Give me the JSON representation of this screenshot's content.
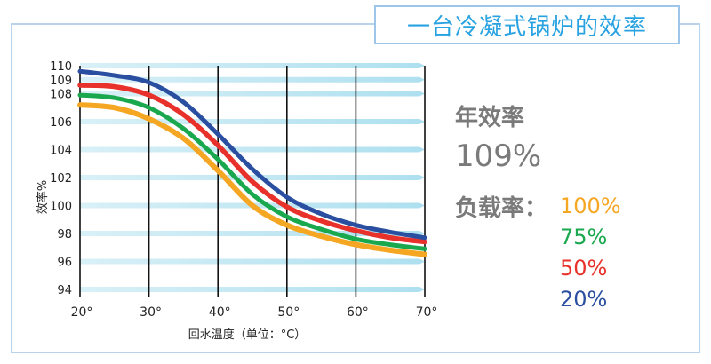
{
  "header": {
    "title": "一台冷凝式锅炉的效率"
  },
  "side_panel": {
    "annual_label": "年效率",
    "annual_value": "109%",
    "load_label": "负载率：",
    "loads": [
      {
        "label": "100%",
        "color": "#f5a623"
      },
      {
        "label": "75%",
        "color": "#1aa84e"
      },
      {
        "label": "50%",
        "color": "#e8312a"
      },
      {
        "label": "20%",
        "color": "#2a4fa0"
      }
    ]
  },
  "chart_data": {
    "type": "line",
    "title": "",
    "xlabel": "回水温度（单位：°C）",
    "ylabel": "效率%",
    "xlim": [
      20,
      70
    ],
    "ylim": [
      94,
      110
    ],
    "x_ticks": [
      20,
      30,
      40,
      50,
      60,
      70
    ],
    "x_tick_labels": [
      "20°",
      "30°",
      "40°",
      "50°",
      "60°",
      "70°"
    ],
    "y_ticks": [
      94,
      96,
      98,
      100,
      102,
      104,
      106,
      108,
      109,
      110
    ],
    "y_tick_labels": [
      "94",
      "96",
      "98",
      "100",
      "102",
      "104",
      "106",
      "108",
      "109",
      "110"
    ],
    "grid": {
      "horizontal": true,
      "vertical": true
    },
    "series": [
      {
        "name": "100%",
        "color": "#f5a623",
        "x": [
          20,
          25,
          30,
          35,
          40,
          45,
          50,
          55,
          60,
          65,
          70
        ],
        "y": [
          107.2,
          107.0,
          106.2,
          104.8,
          102.5,
          100.0,
          98.6,
          97.8,
          97.2,
          96.8,
          96.5
        ]
      },
      {
        "name": "75%",
        "color": "#1aa84e",
        "x": [
          20,
          25,
          30,
          35,
          40,
          45,
          50,
          55,
          60,
          65,
          70
        ],
        "y": [
          107.9,
          107.7,
          107.0,
          105.5,
          103.3,
          100.8,
          99.2,
          98.3,
          97.6,
          97.2,
          96.9
        ]
      },
      {
        "name": "50%",
        "color": "#e8312a",
        "x": [
          20,
          25,
          30,
          35,
          40,
          45,
          50,
          55,
          60,
          65,
          70
        ],
        "y": [
          108.6,
          108.5,
          107.9,
          106.5,
          104.3,
          101.7,
          99.9,
          98.9,
          98.2,
          97.7,
          97.4
        ]
      },
      {
        "name": "20%",
        "color": "#2a4fa0",
        "x": [
          20,
          25,
          30,
          35,
          40,
          45,
          50,
          55,
          60,
          65,
          70
        ],
        "y": [
          109.6,
          109.3,
          108.8,
          107.4,
          105.1,
          102.6,
          100.6,
          99.4,
          98.6,
          98.1,
          97.7
        ]
      }
    ]
  }
}
